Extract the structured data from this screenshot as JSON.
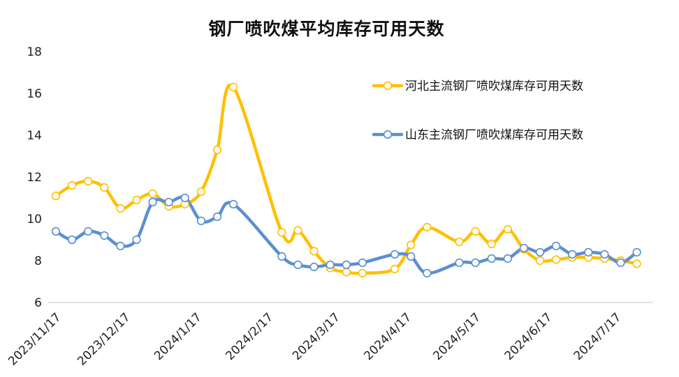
{
  "chart_data": {
    "type": "line",
    "title": "钢厂喷吹煤平均库存可用天数",
    "xlabel": "",
    "ylabel": "",
    "ylim": [
      6,
      18
    ],
    "yticks": [
      6,
      8,
      10,
      12,
      14,
      16,
      18
    ],
    "grid": false,
    "legend_position": "top-right",
    "x_tick_labels": [
      "2023/11/17",
      "2023/12/17",
      "2024/1/17",
      "2024/2/17",
      "2024/3/17",
      "2024/4/17",
      "2024/5/17",
      "2024/6/17",
      "2024/7/17"
    ],
    "x": [
      "2023/11/17",
      "2023/11/24",
      "2023/12/1",
      "2023/12/8",
      "2023/12/15",
      "2023/12/22",
      "2023/12/29",
      "2024/1/5",
      "2024/1/12",
      "2024/1/19",
      "2024/1/26",
      "2024/2/2",
      "2024/2/23",
      "2024/3/1",
      "2024/3/8",
      "2024/3/15",
      "2024/3/22",
      "2024/3/29",
      "2024/4/12",
      "2024/4/19",
      "2024/4/26",
      "2024/5/10",
      "2024/5/17",
      "2024/5/24",
      "2024/5/31",
      "2024/6/7",
      "2024/6/14",
      "2024/6/21",
      "2024/6/28",
      "2024/7/5",
      "2024/7/12",
      "2024/7/19",
      "2024/7/26"
    ],
    "series": [
      {
        "name": "河北主流钢厂喷吹煤库存可用天数",
        "color": "#FFC000",
        "values": [
          11.1,
          11.6,
          11.8,
          11.5,
          10.5,
          10.9,
          11.2,
          10.6,
          10.7,
          11.3,
          13.3,
          16.3,
          9.35,
          9.45,
          8.45,
          7.65,
          7.45,
          7.4,
          7.6,
          8.75,
          9.6,
          8.9,
          9.4,
          8.8,
          9.5,
          8.55,
          8.0,
          8.05,
          8.15,
          8.15,
          8.1,
          8.0,
          7.85
        ]
      },
      {
        "name": "山东主流钢厂喷吹煤库存可用天数",
        "color": "#5B8FD1",
        "values": [
          9.4,
          9.0,
          9.4,
          9.2,
          8.7,
          9.0,
          10.8,
          10.8,
          11.0,
          9.9,
          10.1,
          10.7,
          8.2,
          7.8,
          7.7,
          7.8,
          7.8,
          7.9,
          8.3,
          8.2,
          7.4,
          7.9,
          7.9,
          8.1,
          8.1,
          8.6,
          8.4,
          8.7,
          8.3,
          8.4,
          8.3,
          7.9,
          8.4
        ]
      }
    ]
  }
}
